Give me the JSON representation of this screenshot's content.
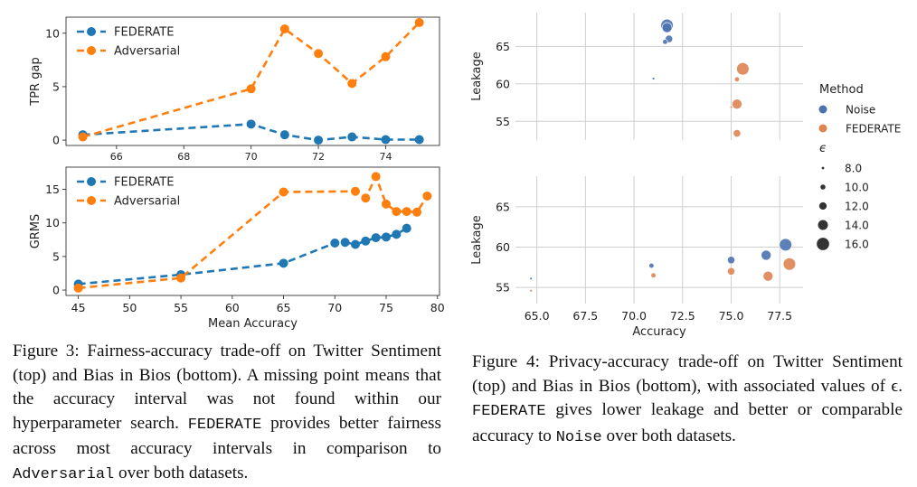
{
  "figure3": {
    "top": {
      "ylabel": "TPR gap",
      "xlim": [
        64.5,
        75.6
      ],
      "ylim": [
        -0.5,
        11.5
      ],
      "xticks": [
        66,
        68,
        70,
        72,
        74
      ],
      "yticks": [
        0,
        5,
        10
      ],
      "legend": [
        "FEDERATE",
        "Adversarial"
      ],
      "series": [
        {
          "name": "FEDERATE",
          "color": "#1f77b4",
          "x": [
            65,
            70,
            71,
            72,
            73,
            74,
            75
          ],
          "y": [
            0.5,
            1.5,
            0.5,
            0.0,
            0.3,
            0.05,
            0.05
          ]
        },
        {
          "name": "Adversarial",
          "color": "#ff7f0e",
          "x": [
            65,
            70,
            71,
            72,
            73,
            74,
            75
          ],
          "y": [
            0.3,
            4.8,
            10.4,
            8.1,
            5.3,
            7.8,
            11.0
          ]
        }
      ]
    },
    "bottom": {
      "ylabel": "GRMS",
      "xlabel": "Mean Accuracy",
      "xlim": [
        43.8,
        80.2
      ],
      "ylim": [
        -0.8,
        18.3
      ],
      "xticks": [
        45,
        50,
        55,
        60,
        65,
        70,
        75,
        80
      ],
      "yticks": [
        0,
        5,
        10,
        15
      ],
      "legend": [
        "FEDERATE",
        "Adversarial"
      ],
      "series": [
        {
          "name": "FEDERATE",
          "color": "#1f77b4",
          "x": [
            45,
            55,
            65,
            70,
            71,
            72,
            73,
            74,
            75,
            76,
            77
          ],
          "y": [
            0.9,
            2.3,
            4.0,
            7.0,
            7.1,
            6.8,
            7.3,
            7.8,
            7.9,
            8.3,
            9.2
          ]
        },
        {
          "name": "Adversarial",
          "color": "#ff7f0e",
          "x": [
            45,
            55,
            65,
            72,
            73,
            74,
            75,
            76,
            77,
            78,
            79
          ],
          "y": [
            0.3,
            1.8,
            14.6,
            14.7,
            13.7,
            16.9,
            12.8,
            11.7,
            11.7,
            11.6,
            14.0
          ]
        }
      ]
    },
    "caption": {
      "t1": "Figure 3: Fairness-accuracy trade-off on Twitter Sentiment (top) and Bias in Bios (bottom). A missing point means that the accuracy interval was not found within our hyperparameter search.",
      "m1": "FEDERATE",
      "t2": "provides better fairness across most accuracy intervals in comparison to",
      "m2": "Adversarial",
      "t3": "over both datasets."
    }
  },
  "figure4": {
    "top": {
      "ylabel": "Leakage",
      "xlim": [
        63.9,
        78.7
      ],
      "ylim": [
        52.5,
        69.5
      ],
      "xticks": [
        65.0,
        67.5,
        70.0,
        72.5,
        75.0,
        77.5
      ],
      "yticks": [
        55,
        60,
        65
      ],
      "points": [
        {
          "method": "Noise",
          "x": 71.7,
          "y": 67.8,
          "eps": 16.0
        },
        {
          "method": "Noise",
          "x": 71.7,
          "y": 67.5,
          "eps": 14.0
        },
        {
          "method": "Noise",
          "x": 71.8,
          "y": 66.0,
          "eps": 12.0
        },
        {
          "method": "Noise",
          "x": 71.6,
          "y": 65.6,
          "eps": 10.0
        },
        {
          "method": "Noise",
          "x": 71.0,
          "y": 60.7,
          "eps": 8.0
        },
        {
          "method": "FEDERATE",
          "x": 75.6,
          "y": 62.0,
          "eps": 16.0
        },
        {
          "method": "FEDERATE",
          "x": 75.3,
          "y": 57.3,
          "eps": 14.0
        },
        {
          "method": "FEDERATE",
          "x": 75.3,
          "y": 53.4,
          "eps": 12.0
        },
        {
          "method": "FEDERATE",
          "x": 75.3,
          "y": 60.6,
          "eps": 10.0
        },
        {
          "method": "FEDERATE",
          "x": 75.0,
          "y": 56.9,
          "eps": 8.0
        }
      ]
    },
    "bottom": {
      "ylabel": "Leakage",
      "xlabel": "Accuracy",
      "xlim": [
        63.9,
        78.7
      ],
      "ylim": [
        53.0,
        68.8
      ],
      "xticks": [
        65.0,
        67.5,
        70.0,
        72.5,
        75.0,
        77.5
      ],
      "xticklabels": [
        "65.0",
        "67.5",
        "70.0",
        "72.5",
        "75.0",
        "77.5"
      ],
      "yticks": [
        55,
        60,
        65
      ],
      "points": [
        {
          "method": "Noise",
          "x": 64.7,
          "y": 56.1,
          "eps": 8.0
        },
        {
          "method": "Noise",
          "x": 70.9,
          "y": 57.7,
          "eps": 10.0
        },
        {
          "method": "Noise",
          "x": 75.0,
          "y": 58.4,
          "eps": 12.0
        },
        {
          "method": "Noise",
          "x": 76.8,
          "y": 59.0,
          "eps": 14.0
        },
        {
          "method": "Noise",
          "x": 77.8,
          "y": 60.3,
          "eps": 16.0
        },
        {
          "method": "FEDERATE",
          "x": 64.7,
          "y": 54.6,
          "eps": 8.0
        },
        {
          "method": "FEDERATE",
          "x": 71.0,
          "y": 56.5,
          "eps": 10.0
        },
        {
          "method": "FEDERATE",
          "x": 75.0,
          "y": 57.0,
          "eps": 12.0
        },
        {
          "method": "FEDERATE",
          "x": 76.9,
          "y": 56.4,
          "eps": 14.0
        },
        {
          "method": "FEDERATE",
          "x": 78.0,
          "y": 57.9,
          "eps": 16.0
        }
      ]
    },
    "legend": {
      "method_title": "Method",
      "methods": [
        {
          "name": "Noise",
          "color": "#4c72b0"
        },
        {
          "name": "FEDERATE",
          "color": "#dd8452"
        }
      ],
      "eps_title": "ϵ",
      "eps_values": [
        "8.0",
        "10.0",
        "12.0",
        "14.0",
        "16.0"
      ]
    },
    "caption": {
      "t1": "Figure 4: Privacy-accuracy trade-off on Twitter Sentiment (top) and Bias in Bios (bottom), with associated values of ϵ.",
      "m1": "FEDERATE",
      "t2": "gives lower leakage and better or comparable accuracy to",
      "m2": "Noise",
      "t3": "over both datasets."
    }
  }
}
